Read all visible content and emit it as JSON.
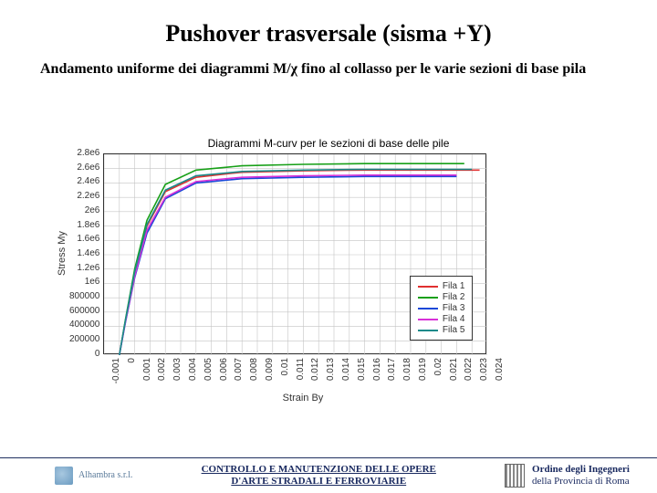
{
  "title": {
    "text": "Pushover trasversale (sisma +Y)",
    "fontsize": 26
  },
  "subtitle": {
    "text": "Andamento uniforme dei diagrammi M/χ fino al collasso per le varie sezioni di base pila",
    "fontsize": 16
  },
  "chart": {
    "type": "line",
    "title": "Diagrammi M-curv per le sezioni di base delle pile",
    "xlabel": "Strain By",
    "ylabel": "Stress My",
    "background_color": "#ffffff",
    "grid_color": "#c4c4c4",
    "axis_color": "#333333",
    "tick_fontsize": 10,
    "label_fontsize": 11,
    "xlim": [
      -0.001,
      0.024
    ],
    "ylim": [
      0,
      2800000
    ],
    "xticks": [
      "-0.001",
      "0",
      "0.001",
      "0.002",
      "0.003",
      "0.004",
      "0.005",
      "0.006",
      "0.007",
      "0.008",
      "0.009",
      "0.01",
      "0.011",
      "0.012",
      "0.013",
      "0.014",
      "0.015",
      "0.016",
      "0.017",
      "0.018",
      "0.019",
      "0.02",
      "0.021",
      "0.022",
      "0.023",
      "0.024"
    ],
    "yticks": [
      "0",
      "200000",
      "400000",
      "600000",
      "800000",
      "1e6",
      "1.2e6",
      "1.4e6",
      "1.6e6",
      "1.8e6",
      "2e6",
      "2.2e6",
      "2.4e6",
      "2.6e6",
      "2.8e6"
    ],
    "line_width": 1.6,
    "series": [
      {
        "name": "Fila 1",
        "color": "#e03030",
        "x": [
          0,
          0.0004,
          0.001,
          0.0018,
          0.003,
          0.005,
          0.008,
          0.012,
          0.016,
          0.02,
          0.0235
        ],
        "y": [
          0,
          480000,
          1150000,
          1800000,
          2280000,
          2480000,
          2550000,
          2570000,
          2580000,
          2580000,
          2580000
        ]
      },
      {
        "name": "Fila 2",
        "color": "#18a018",
        "x": [
          0,
          0.0004,
          0.001,
          0.0018,
          0.003,
          0.005,
          0.008,
          0.012,
          0.016,
          0.02,
          0.0225
        ],
        "y": [
          0,
          500000,
          1200000,
          1880000,
          2380000,
          2580000,
          2640000,
          2660000,
          2670000,
          2670000,
          2670000
        ]
      },
      {
        "name": "Fila 3",
        "color": "#1848d8",
        "x": [
          0,
          0.0004,
          0.001,
          0.0018,
          0.003,
          0.005,
          0.008,
          0.012,
          0.016,
          0.02,
          0.022
        ],
        "y": [
          0,
          460000,
          1080000,
          1700000,
          2180000,
          2400000,
          2460000,
          2480000,
          2490000,
          2490000,
          2490000
        ]
      },
      {
        "name": "Fila 4",
        "color": "#d830d8",
        "x": [
          0,
          0.0004,
          0.001,
          0.0018,
          0.003,
          0.005,
          0.008,
          0.012,
          0.016,
          0.02,
          0.022
        ],
        "y": [
          0,
          470000,
          1100000,
          1740000,
          2200000,
          2420000,
          2480000,
          2500000,
          2510000,
          2510000,
          2510000
        ]
      },
      {
        "name": "Fila 5",
        "color": "#1a8a8a",
        "x": [
          0,
          0.0004,
          0.001,
          0.0018,
          0.003,
          0.005,
          0.008,
          0.012,
          0.016,
          0.02,
          0.023
        ],
        "y": [
          0,
          490000,
          1160000,
          1820000,
          2300000,
          2500000,
          2560000,
          2580000,
          2590000,
          2590000,
          2590000
        ]
      }
    ]
  },
  "footer": {
    "left_brand": "Alhambra s.r.l.",
    "center_line1": "CONTROLLO E MANUTENZIONE DELLE OPERE",
    "center_line2": "D'ARTE STRADALI E FERROVIARIE",
    "right_line1": "Ordine degli Ingegneri",
    "right_line2": "della Provincia di Roma"
  }
}
